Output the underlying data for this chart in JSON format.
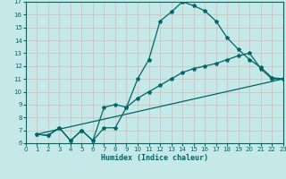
{
  "xlabel": "Humidex (Indice chaleur)",
  "bg_color": "#c5e8e8",
  "grid_color": "#e8c8c8",
  "line_color": "#006666",
  "xlim": [
    0,
    23
  ],
  "ylim": [
    6,
    17
  ],
  "xticks": [
    0,
    1,
    2,
    3,
    4,
    5,
    6,
    7,
    8,
    9,
    10,
    11,
    12,
    13,
    14,
    15,
    16,
    17,
    18,
    19,
    20,
    21,
    22,
    23
  ],
  "yticks": [
    6,
    7,
    8,
    9,
    10,
    11,
    12,
    13,
    14,
    15,
    16,
    17
  ],
  "line1_x": [
    1,
    2,
    3,
    4,
    5,
    6,
    7,
    8,
    9,
    10,
    11,
    12,
    13,
    14,
    15,
    16,
    17,
    18,
    19,
    20,
    21,
    22,
    23
  ],
  "line1_y": [
    6.7,
    6.6,
    7.2,
    6.2,
    7.0,
    6.2,
    8.8,
    9.0,
    8.8,
    11.0,
    12.5,
    15.5,
    16.2,
    17.0,
    16.7,
    16.3,
    15.5,
    14.2,
    13.3,
    12.5,
    11.9,
    11.1,
    11.0
  ],
  "line2_x": [
    1,
    2,
    3,
    4,
    5,
    6,
    7,
    8,
    9,
    10,
    11,
    12,
    13,
    14,
    15,
    16,
    17,
    18,
    19,
    20,
    21,
    22,
    23
  ],
  "line2_y": [
    6.7,
    6.6,
    7.2,
    6.2,
    7.0,
    6.2,
    7.2,
    7.2,
    8.8,
    9.5,
    10.0,
    10.5,
    11.0,
    11.5,
    11.8,
    12.0,
    12.2,
    12.5,
    12.8,
    13.0,
    11.8,
    11.0,
    11.0
  ],
  "line3_x": [
    1,
    23
  ],
  "line3_y": [
    6.7,
    11.0
  ]
}
